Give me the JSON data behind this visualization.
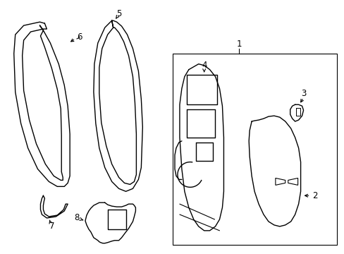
{
  "background_color": "#ffffff",
  "line_color": "#000000",
  "line_width": 1.0,
  "label_fontsize": 8.5,
  "fig_width": 4.89,
  "fig_height": 3.6,
  "dpi": 100
}
